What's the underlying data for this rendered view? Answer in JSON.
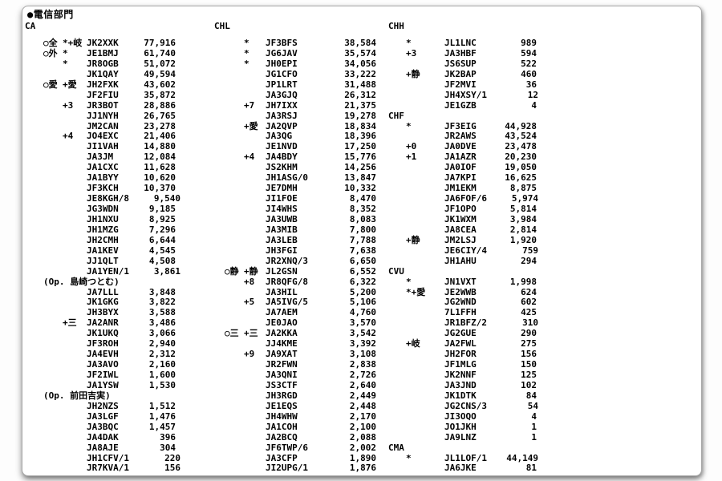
{
  "title": "●電信部門",
  "columns": [
    {
      "header": "CA",
      "rows": [
        {
          "m1": "○全",
          "m2": "*+岐",
          "call": "JK2XXK",
          "score": "77,916"
        },
        {
          "m1": "○外",
          "m2": "*",
          "call": "JE1BMJ",
          "score": "61,740"
        },
        {
          "m2": "*",
          "call": "JR8OGB",
          "score": "51,072"
        },
        {
          "call": "JK1QAY",
          "score": "49,594"
        },
        {
          "m1": "○愛",
          "m2": "+愛",
          "call": "JH2FXK",
          "score": "43,602"
        },
        {
          "call": "JF2FIU",
          "score": "35,872"
        },
        {
          "m2": "+3",
          "call": "JR3BOT",
          "score": "28,886"
        },
        {
          "call": "JJ1NYH",
          "score": "26,765"
        },
        {
          "call": "JM2CAN",
          "score": "23,278"
        },
        {
          "m2": "+4",
          "call": "JO4EXC",
          "score": "21,406"
        },
        {
          "call": "JI1VAH",
          "score": "14,880"
        },
        {
          "call": "JA3JM",
          "score": "12,084"
        },
        {
          "call": "JA1CXC",
          "score": "11,628"
        },
        {
          "call": "JA1BYY",
          "score": "10,620"
        },
        {
          "call": "JF3KCH",
          "score": "10,370"
        },
        {
          "call": "JE8KGH/8",
          "score": "9,540"
        },
        {
          "call": "JG3WDN",
          "score": "9,185"
        },
        {
          "call": "JH1NXU",
          "score": "8,925"
        },
        {
          "call": "JH1MZG",
          "score": "7,296"
        },
        {
          "call": "JH2CMH",
          "score": "6,644"
        },
        {
          "call": "JA1KEV",
          "score": "4,545"
        },
        {
          "call": "JJ1QLT",
          "score": "4,508"
        },
        {
          "call": "JA1YEN/1",
          "score": "3,861"
        },
        {
          "op": "(Op. 島崎つとむ)"
        },
        {
          "call": "JA7LLL",
          "score": "3,848"
        },
        {
          "call": "JK1GKG",
          "score": "3,822"
        },
        {
          "call": "JH3BYX",
          "score": "3,588"
        },
        {
          "m2": "+三",
          "call": "JA2ANR",
          "score": "3,486"
        },
        {
          "call": "JK1UKQ",
          "score": "3,066"
        },
        {
          "call": "JF3ROH",
          "score": "2,940"
        },
        {
          "call": "JA4EVH",
          "score": "2,312"
        },
        {
          "call": "JA3AVO",
          "score": "2,160"
        },
        {
          "call": "JF2IWL",
          "score": "1,600"
        },
        {
          "call": "JA1YSW",
          "score": "1,530"
        },
        {
          "op": "(Op. 前田吉実)"
        },
        {
          "call": "JH2NZS",
          "score": "1,512"
        },
        {
          "call": "JA3LGF",
          "score": "1,476"
        },
        {
          "call": "JA3BQC",
          "score": "1,457"
        },
        {
          "call": "JA4DAK",
          "score": "396"
        },
        {
          "call": "JA8AJE",
          "score": "304"
        },
        {
          "call": "JH1CFV/1",
          "score": "220"
        },
        {
          "call": "JR7KVA/1",
          "score": "156"
        }
      ]
    },
    {
      "header": "CHL",
      "rows": [
        {
          "m2": "*",
          "call": "JF3BFS",
          "score": "38,584"
        },
        {
          "m2": "*",
          "call": "JG6JAV",
          "score": "35,574"
        },
        {
          "m2": "*",
          "call": "JH0EPI",
          "score": "34,056"
        },
        {
          "call": "JG1CFO",
          "score": "33,222"
        },
        {
          "call": "JP1LRT",
          "score": "31,488"
        },
        {
          "call": "JA3GJQ",
          "score": "26,312"
        },
        {
          "m2": "+7",
          "call": "JH7IXX",
          "score": "21,375"
        },
        {
          "call": "JA3RSJ",
          "score": "19,278"
        },
        {
          "m2": "+愛",
          "call": "JA2QVP",
          "score": "18,834"
        },
        {
          "call": "JA3QG",
          "score": "18,396"
        },
        {
          "call": "JE1NVD",
          "score": "17,250"
        },
        {
          "m2": "+4",
          "call": "JA4BDY",
          "score": "15,776"
        },
        {
          "call": "JS2KHM",
          "score": "14,256"
        },
        {
          "call": "JH1ASG/0",
          "score": "13,847"
        },
        {
          "call": "JE7DMH",
          "score": "10,332"
        },
        {
          "call": "JI1FOE",
          "score": "8,470"
        },
        {
          "call": "JI4WHS",
          "score": "8,352"
        },
        {
          "call": "JA3UWB",
          "score": "8,083"
        },
        {
          "call": "JA3MIB",
          "score": "7,800"
        },
        {
          "call": "JA3LEB",
          "score": "7,788"
        },
        {
          "call": "JH3FGI",
          "score": "7,638"
        },
        {
          "call": "JR2XNQ/3",
          "score": "6,650"
        },
        {
          "m1": "○静",
          "m2": "+静",
          "call": "JL2GSN",
          "score": "6,552"
        },
        {
          "m2": "+8",
          "call": "JR8QFG/8",
          "score": "6,322"
        },
        {
          "call": "JA3HIL",
          "score": "5,200"
        },
        {
          "m2": "+5",
          "call": "JA5IVG/5",
          "score": "5,106"
        },
        {
          "call": "JA7AEM",
          "score": "4,760"
        },
        {
          "call": "JE0JAO",
          "score": "3,570"
        },
        {
          "m1": "○三",
          "m2": "+三",
          "call": "JA2KKA",
          "score": "3,542"
        },
        {
          "call": "JJ4KME",
          "score": "3,392"
        },
        {
          "m2": "+9",
          "call": "JA9XAT",
          "score": "3,108"
        },
        {
          "call": "JR2FWN",
          "score": "2,838"
        },
        {
          "call": "JA3QNI",
          "score": "2,726"
        },
        {
          "call": "JS3CTF",
          "score": "2,640"
        },
        {
          "call": "JH3RGD",
          "score": "2,449"
        },
        {
          "call": "JE1EQS",
          "score": "2,448"
        },
        {
          "call": "JH4WHW",
          "score": "2,170"
        },
        {
          "call": "JA1COH",
          "score": "2,100"
        },
        {
          "call": "JA2BCQ",
          "score": "2,088"
        },
        {
          "call": "JF6TWP/6",
          "score": "2,002"
        },
        {
          "call": "JA3CFP",
          "score": "1,890"
        },
        {
          "call": "JI2UPG/1",
          "score": "1,876"
        }
      ]
    },
    {
      "header": "CHH",
      "rows": [
        {
          "m2": "*",
          "call": "JL1LNC",
          "score": "989"
        },
        {
          "m2": "+3",
          "call": "JA3HBF",
          "score": "594"
        },
        {
          "call": "JS6SUP",
          "score": "522"
        },
        {
          "m2": "+静",
          "call": "JK2BAP",
          "score": "460"
        },
        {
          "call": "JF2MVI",
          "score": "36"
        },
        {
          "call": "JH4XSY/1",
          "score": "12"
        },
        {
          "call": "JE1GZB",
          "score": "4"
        },
        {
          "h": "CHF"
        },
        {
          "m2": "*",
          "call": "JF3EIG",
          "score": "44,928"
        },
        {
          "call": "JR2AWS",
          "score": "43,524"
        },
        {
          "m2": "+0",
          "call": "JA0DVE",
          "score": "23,478"
        },
        {
          "m2": "+1",
          "call": "JA1AZR",
          "score": "20,230"
        },
        {
          "call": "JA0IOF",
          "score": "19,050"
        },
        {
          "call": "JA7KPI",
          "score": "16,625"
        },
        {
          "call": "JM1EKM",
          "score": "8,875"
        },
        {
          "call": "JA6FOF/6",
          "score": "5,974"
        },
        {
          "call": "JF1OPO",
          "score": "5,814"
        },
        {
          "call": "JK1WXM",
          "score": "3,984"
        },
        {
          "call": "JA8CEA",
          "score": "2,814"
        },
        {
          "m2": "+静",
          "call": "JM2LSJ",
          "score": "1,920"
        },
        {
          "call": "JE6CIY/4",
          "score": "759"
        },
        {
          "call": "JH1AHU",
          "score": "294"
        },
        {
          "h": "CVU"
        },
        {
          "m2": "*",
          "call": "JN1VXT",
          "score": "1,998"
        },
        {
          "m2": "*+愛",
          "call": "JE2WWB",
          "score": "624"
        },
        {
          "call": "JG2WND",
          "score": "602"
        },
        {
          "call": "7L1FFH",
          "score": "425"
        },
        {
          "call": "JR1BFZ/2",
          "score": "310"
        },
        {
          "call": "JG2GUE",
          "score": "290"
        },
        {
          "m2": "+岐",
          "call": "JA2FWL",
          "score": "275"
        },
        {
          "call": "JH2FOR",
          "score": "156"
        },
        {
          "call": "JF1MLG",
          "score": "150"
        },
        {
          "call": "JK2NNF",
          "score": "125"
        },
        {
          "call": "JA3JND",
          "score": "102"
        },
        {
          "call": "JK1DTK",
          "score": "84"
        },
        {
          "call": "JG2CNS/3",
          "score": "54"
        },
        {
          "call": "JI3OQO",
          "score": "4"
        },
        {
          "call": "JO1JKH",
          "score": "1"
        },
        {
          "call": "JA9LNZ",
          "score": "1"
        },
        {
          "h": "CMA"
        },
        {
          "m2": "*",
          "call": "JL1LOF/1",
          "score": "44,149"
        },
        {
          "call": "JA6JKE",
          "score": "81"
        }
      ]
    }
  ]
}
